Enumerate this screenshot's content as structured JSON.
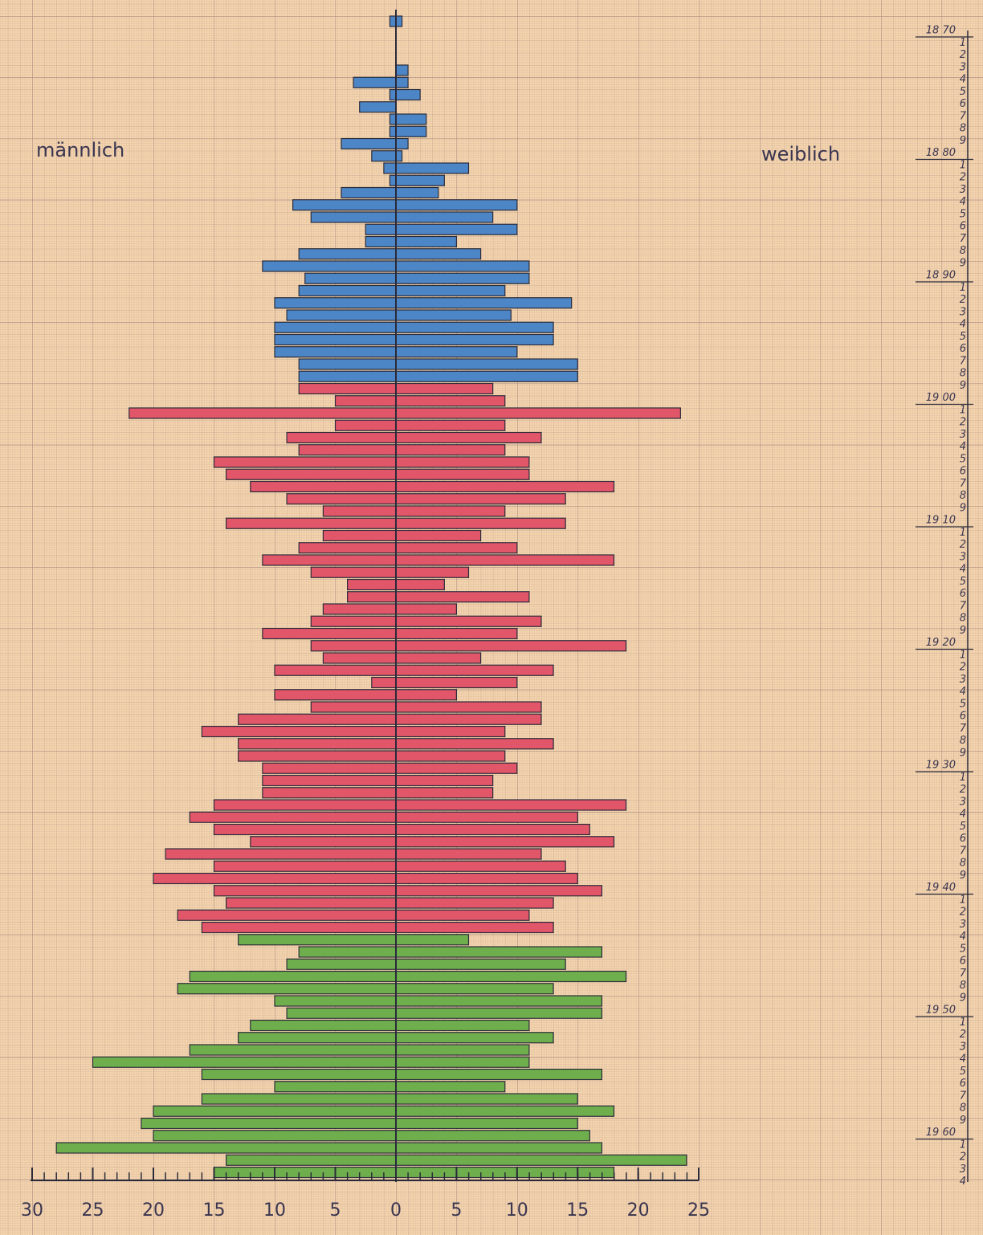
{
  "chart_data": {
    "type": "pyramid",
    "categories": [
      "18 70",
      "1",
      "2",
      "3",
      "4",
      "5",
      "6",
      "7",
      "8",
      "9",
      "18 80",
      "1",
      "2",
      "3",
      "4",
      "5",
      "6",
      "7",
      "8",
      "9",
      "18 90",
      "1",
      "2",
      "3",
      "4",
      "5",
      "6",
      "7",
      "8",
      "9",
      "19 00",
      "1",
      "2",
      "3",
      "4",
      "5",
      "6",
      "7",
      "8",
      "9",
      "19 10",
      "1",
      "2",
      "3",
      "4",
      "5",
      "6",
      "7",
      "8",
      "9",
      "19 20",
      "1",
      "2",
      "3",
      "4",
      "5",
      "6",
      "7",
      "8",
      "9",
      "19 30",
      "1",
      "2",
      "3",
      "4",
      "5",
      "6",
      "7",
      "8",
      "9",
      "19 40",
      "1",
      "2",
      "3",
      "4",
      "5",
      "6",
      "7",
      "8",
      "9",
      "19 50",
      "1",
      "2",
      "3",
      "4",
      "5",
      "6",
      "7",
      "8",
      "9",
      "19 60",
      "1",
      "2",
      "3",
      "4"
    ],
    "series": [
      {
        "name": "männlich",
        "side": "left",
        "xlim": [
          0,
          30
        ],
        "xticks": [
          0,
          5,
          10,
          15,
          20,
          25,
          30
        ],
        "values": [
          0.5,
          0,
          0,
          0,
          0,
          3.5,
          0.5,
          3,
          0.5,
          0.5,
          4.5,
          2,
          1,
          0.5,
          4.5,
          8.5,
          7,
          2.5,
          2.5,
          8,
          11,
          7.5,
          8,
          10,
          9,
          10,
          10,
          10,
          8,
          8,
          8,
          5,
          22,
          5,
          9,
          8,
          15,
          14,
          12,
          9,
          6,
          14,
          6,
          8,
          11,
          7,
          4,
          4,
          6,
          7,
          11,
          7,
          6,
          10,
          2,
          10,
          7,
          13,
          16,
          13,
          13,
          11,
          11,
          11,
          15,
          17,
          15,
          12,
          19,
          15,
          20,
          15,
          14,
          18,
          16,
          13,
          8,
          9,
          17,
          18,
          10,
          9,
          12,
          13,
          17,
          25,
          16,
          10,
          16,
          20,
          21,
          20,
          28,
          14,
          15
        ]
      },
      {
        "name": "weiblich",
        "side": "right",
        "xlim": [
          0,
          25
        ],
        "xticks": [
          5,
          10,
          15,
          20,
          25
        ],
        "values": [
          0.5,
          0,
          0,
          0,
          1,
          1,
          2,
          0,
          2.5,
          2.5,
          1,
          0.5,
          6,
          4,
          3.5,
          10,
          8,
          10,
          5,
          7,
          11,
          11,
          9,
          14.5,
          9.5,
          13,
          13,
          10,
          15,
          15,
          8,
          9,
          23.5,
          9,
          12,
          9,
          11,
          11,
          18,
          14,
          9,
          14,
          7,
          10,
          18,
          6,
          4,
          11,
          5,
          12,
          10,
          19,
          7,
          13,
          10,
          5,
          12,
          12,
          9,
          13,
          9,
          10,
          8,
          8,
          19,
          15,
          16,
          18,
          12,
          14,
          15,
          17,
          13,
          11,
          13,
          6,
          17,
          14,
          19,
          13,
          17,
          17,
          11,
          13,
          11,
          11,
          17,
          9,
          15,
          18,
          15,
          16,
          17,
          24,
          18
        ]
      }
    ],
    "bar_colors": [
      "#4d86c6",
      "#4d86c6",
      "#4d86c6",
      "#4d86c6",
      "#4d86c6",
      "#4d86c6",
      "#4d86c6",
      "#4d86c6",
      "#4d86c6",
      "#4d86c6",
      "#4d86c6",
      "#4d86c6",
      "#4d86c6",
      "#4d86c6",
      "#4d86c6",
      "#4d86c6",
      "#4d86c6",
      "#4d86c6",
      "#4d86c6",
      "#4d86c6",
      "#4d86c6",
      "#4d86c6",
      "#4d86c6",
      "#4d86c6",
      "#4d86c6",
      "#4d86c6",
      "#4d86c6",
      "#4d86c6",
      "#4d86c6",
      "#4d86c6",
      "#e2566a",
      "#e2566a",
      "#e2566a",
      "#e2566a",
      "#e2566a",
      "#e2566a",
      "#e2566a",
      "#e2566a",
      "#e2566a",
      "#e2566a",
      "#e2566a",
      "#e2566a",
      "#e2566a",
      "#e2566a",
      "#e2566a",
      "#e2566a",
      "#e2566a",
      "#e2566a",
      "#e2566a",
      "#e2566a",
      "#e2566a",
      "#e2566a",
      "#e2566a",
      "#e2566a",
      "#e2566a",
      "#e2566a",
      "#e2566a",
      "#e2566a",
      "#e2566a",
      "#e2566a",
      "#e2566a",
      "#e2566a",
      "#e2566a",
      "#e2566a",
      "#e2566a",
      "#e2566a",
      "#e2566a",
      "#e2566a",
      "#e2566a",
      "#e2566a",
      "#e2566a",
      "#e2566a",
      "#e2566a",
      "#e2566a",
      "#e2566a",
      "#6fae4c",
      "#6fae4c",
      "#6fae4c",
      "#6fae4c",
      "#6fae4c",
      "#6fae4c",
      "#6fae4c",
      "#6fae4c",
      "#6fae4c",
      "#6fae4c",
      "#6fae4c",
      "#6fae4c",
      "#6fae4c",
      "#6fae4c",
      "#6fae4c",
      "#6fae4c",
      "#6fae4c",
      "#6fae4c",
      "#6fae4c",
      "#6fae4c"
    ]
  }
}
